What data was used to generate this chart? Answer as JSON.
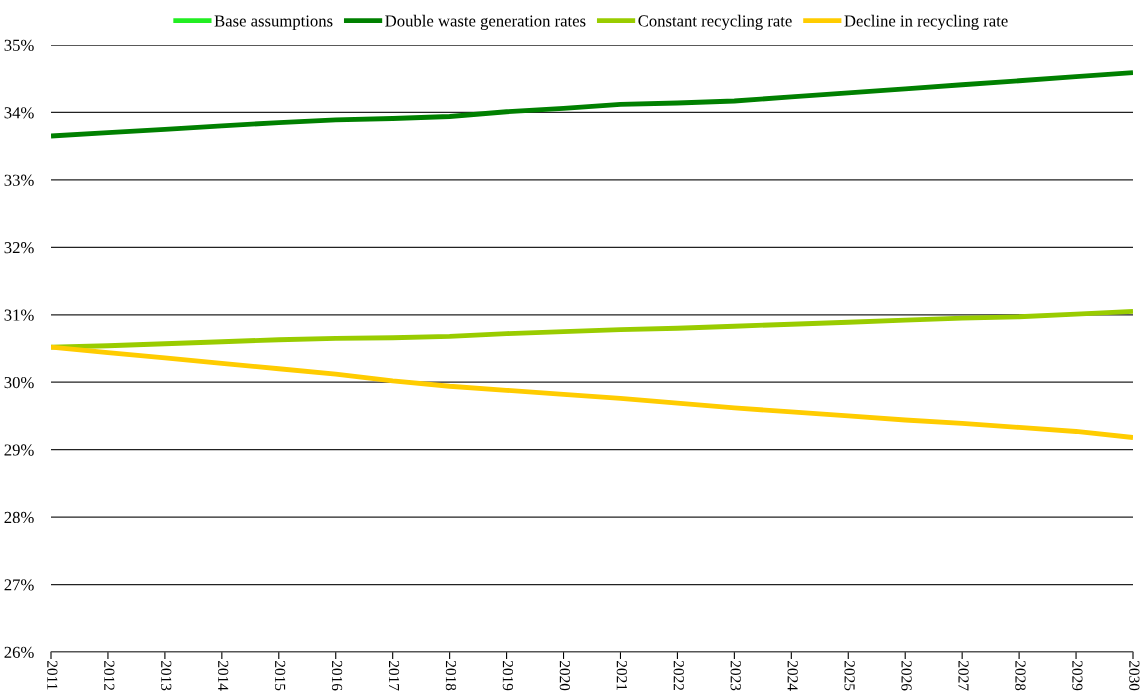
{
  "chart_data": {
    "type": "line",
    "categories": [
      "2011",
      "2012",
      "2013",
      "2014",
      "2015",
      "2016",
      "2017",
      "2018",
      "2019",
      "2020",
      "2021",
      "2022",
      "2023",
      "2024",
      "2025",
      "2026",
      "2027",
      "2028",
      "2029",
      "2030"
    ],
    "series": [
      {
        "name": "Base assumptions",
        "color": "#22ee22",
        "values": [
          null,
          null,
          null,
          null,
          null,
          null,
          null,
          null,
          null,
          null,
          null,
          null,
          null,
          null,
          null,
          null,
          null,
          null,
          null,
          null
        ]
      },
      {
        "name": "Double waste generation rates",
        "color": "#008000",
        "values": [
          33.65,
          33.7,
          33.75,
          33.8,
          33.85,
          33.89,
          33.91,
          33.94,
          34.01,
          34.06,
          34.12,
          34.14,
          34.17,
          34.23,
          34.29,
          34.35,
          34.41,
          34.47,
          34.53,
          34.59
        ]
      },
      {
        "name": "Constant recycling rate",
        "color": "#99cc00",
        "values": [
          30.52,
          30.54,
          30.57,
          30.6,
          30.63,
          30.65,
          30.66,
          30.68,
          30.72,
          30.75,
          30.78,
          30.8,
          30.83,
          30.86,
          30.89,
          30.92,
          30.95,
          30.97,
          31.01,
          31.05
        ]
      },
      {
        "name": "Decline in recycling rate",
        "color": "#ffcc00",
        "values": [
          30.52,
          30.44,
          30.36,
          30.28,
          30.2,
          30.12,
          30.02,
          29.94,
          29.88,
          29.82,
          29.76,
          29.69,
          29.62,
          29.56,
          29.5,
          29.44,
          29.39,
          29.33,
          29.27,
          29.18
        ]
      }
    ],
    "ylim": [
      26,
      35
    ],
    "yticks": [
      {
        "value": 26,
        "label": "26%"
      },
      {
        "value": 27,
        "label": "27%"
      },
      {
        "value": 28,
        "label": "28%"
      },
      {
        "value": 29,
        "label": "29%"
      },
      {
        "value": 30,
        "label": "30%"
      },
      {
        "value": 31,
        "label": "31%"
      },
      {
        "value": 32,
        "label": "32%"
      },
      {
        "value": 33,
        "label": "33%"
      },
      {
        "value": 34,
        "label": "34%"
      },
      {
        "value": 35,
        "label": "35%"
      }
    ],
    "grid": "y",
    "legend": "top",
    "marker": "none",
    "line_style": "solid"
  }
}
